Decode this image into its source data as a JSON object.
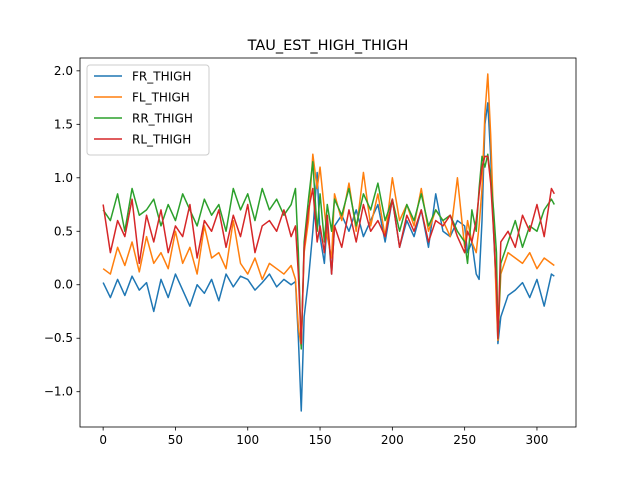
{
  "chart_data": {
    "type": "line",
    "title": "TAU_EST_HIGH_THIGH",
    "xlabel": "",
    "ylabel": "",
    "xlim": [
      -16,
      327
    ],
    "ylim": [
      -1.33,
      2.12
    ],
    "xticks": [
      0,
      50,
      100,
      150,
      200,
      250,
      300
    ],
    "yticks": [
      -1.0,
      -0.5,
      0.0,
      0.5,
      1.0,
      1.5,
      2.0
    ],
    "ytick_labels": [
      "−1.0",
      "−0.5",
      "0.0",
      "0.5",
      "1.0",
      "1.5",
      "2.0"
    ],
    "grid": false,
    "legend_position": "top-left",
    "series": [
      {
        "name": "FR_THIGH",
        "color": "#1f77b4",
        "x": [
          0,
          5,
          10,
          15,
          20,
          25,
          30,
          35,
          40,
          45,
          50,
          55,
          60,
          65,
          70,
          75,
          80,
          85,
          90,
          95,
          100,
          105,
          110,
          115,
          120,
          125,
          130,
          133,
          135,
          137,
          139,
          142,
          145,
          148,
          150,
          153,
          155,
          158,
          160,
          165,
          170,
          175,
          180,
          185,
          190,
          195,
          200,
          205,
          210,
          215,
          220,
          225,
          230,
          235,
          240,
          245,
          250,
          252,
          255,
          258,
          260,
          262,
          264,
          266,
          268,
          270,
          272,
          273,
          275,
          280,
          285,
          290,
          295,
          300,
          305,
          310,
          312
        ],
        "y": [
          0.02,
          -0.12,
          0.05,
          -0.1,
          0.08,
          -0.05,
          0.02,
          -0.25,
          0.05,
          -0.12,
          0.1,
          -0.05,
          -0.2,
          0.0,
          -0.08,
          0.05,
          -0.15,
          0.1,
          -0.02,
          0.08,
          0.05,
          -0.05,
          0.02,
          0.1,
          -0.02,
          0.05,
          0.0,
          0.03,
          -0.5,
          -1.18,
          -0.3,
          0.05,
          0.5,
          1.05,
          0.45,
          0.2,
          0.6,
          0.1,
          0.55,
          0.65,
          0.5,
          0.7,
          0.45,
          0.6,
          0.75,
          0.4,
          0.8,
          0.35,
          0.6,
          0.45,
          0.7,
          0.35,
          0.85,
          0.5,
          0.45,
          0.6,
          0.55,
          0.3,
          0.4,
          0.1,
          0.05,
          0.6,
          1.5,
          1.7,
          1.2,
          0.5,
          -0.1,
          -0.55,
          -0.3,
          -0.1,
          -0.05,
          0.02,
          -0.12,
          0.05,
          -0.2,
          0.1,
          0.08
        ]
      },
      {
        "name": "FL_THIGH",
        "color": "#ff7f0e",
        "x": [
          0,
          5,
          10,
          15,
          20,
          25,
          30,
          35,
          40,
          45,
          50,
          55,
          60,
          65,
          70,
          75,
          80,
          85,
          90,
          95,
          100,
          105,
          110,
          115,
          120,
          125,
          130,
          133,
          135,
          137,
          139,
          142,
          145,
          148,
          150,
          153,
          155,
          158,
          160,
          165,
          170,
          175,
          180,
          185,
          190,
          195,
          200,
          205,
          210,
          215,
          220,
          225,
          230,
          235,
          240,
          245,
          250,
          252,
          255,
          258,
          260,
          262,
          264,
          266,
          268,
          270,
          272,
          273,
          275,
          280,
          285,
          290,
          295,
          300,
          305,
          310,
          312
        ],
        "y": [
          0.15,
          0.1,
          0.35,
          0.18,
          0.4,
          0.12,
          0.45,
          0.2,
          0.3,
          0.15,
          0.5,
          0.2,
          0.35,
          0.1,
          0.55,
          0.25,
          0.3,
          0.15,
          0.6,
          0.2,
          0.1,
          0.25,
          0.05,
          0.2,
          0.15,
          0.1,
          0.18,
          0.05,
          -0.4,
          -0.58,
          0.3,
          0.6,
          1.22,
          0.9,
          1.1,
          0.7,
          0.45,
          0.25,
          0.85,
          0.6,
          0.95,
          0.5,
          1.05,
          0.55,
          0.85,
          0.45,
          1.0,
          0.6,
          0.75,
          0.55,
          0.9,
          0.5,
          0.7,
          0.6,
          0.45,
          1.0,
          0.35,
          0.6,
          0.4,
          0.3,
          0.55,
          0.9,
          1.6,
          1.97,
          1.4,
          0.6,
          -0.2,
          -0.52,
          0.1,
          0.3,
          0.25,
          0.2,
          0.3,
          0.15,
          0.25,
          0.2,
          0.18
        ]
      },
      {
        "name": "RR_THIGH",
        "color": "#2ca02c",
        "x": [
          0,
          5,
          10,
          15,
          20,
          25,
          30,
          35,
          40,
          45,
          50,
          55,
          60,
          65,
          70,
          75,
          80,
          85,
          90,
          95,
          100,
          105,
          110,
          115,
          120,
          125,
          130,
          133,
          135,
          137,
          139,
          142,
          145,
          148,
          150,
          153,
          155,
          158,
          160,
          165,
          170,
          175,
          180,
          185,
          190,
          195,
          200,
          205,
          210,
          215,
          220,
          225,
          230,
          235,
          240,
          245,
          250,
          252,
          255,
          258,
          260,
          262,
          264,
          266,
          268,
          270,
          272,
          273,
          275,
          280,
          285,
          290,
          295,
          300,
          305,
          310,
          312
        ],
        "y": [
          0.7,
          0.6,
          0.85,
          0.5,
          0.9,
          0.65,
          0.7,
          0.8,
          0.55,
          0.75,
          0.6,
          0.85,
          0.7,
          0.55,
          0.8,
          0.65,
          0.75,
          0.5,
          0.9,
          0.7,
          0.85,
          0.6,
          0.9,
          0.7,
          0.8,
          0.65,
          0.75,
          0.9,
          0.3,
          -0.6,
          0.4,
          0.8,
          1.15,
          0.5,
          0.85,
          0.4,
          0.75,
          0.5,
          0.8,
          0.65,
          0.9,
          0.55,
          0.85,
          0.7,
          0.95,
          0.6,
          0.8,
          0.5,
          0.75,
          0.6,
          0.85,
          0.55,
          0.7,
          0.6,
          0.65,
          0.5,
          0.4,
          0.2,
          0.7,
          0.5,
          0.9,
          1.2,
          1.1,
          1.22,
          1.0,
          0.7,
          0.3,
          -0.5,
          0.2,
          0.4,
          0.6,
          0.35,
          0.55,
          0.5,
          0.7,
          0.8,
          0.75
        ]
      },
      {
        "name": "RL_THIGH",
        "color": "#d62728",
        "x": [
          0,
          5,
          10,
          15,
          20,
          25,
          30,
          35,
          40,
          45,
          50,
          55,
          60,
          65,
          70,
          75,
          80,
          85,
          90,
          95,
          100,
          105,
          110,
          115,
          120,
          125,
          130,
          133,
          135,
          137,
          139,
          142,
          145,
          148,
          150,
          153,
          155,
          158,
          160,
          165,
          170,
          175,
          180,
          185,
          190,
          195,
          200,
          205,
          210,
          215,
          220,
          225,
          230,
          235,
          240,
          245,
          250,
          252,
          255,
          258,
          260,
          262,
          264,
          266,
          268,
          270,
          272,
          273,
          275,
          280,
          285,
          290,
          295,
          300,
          305,
          310,
          312
        ],
        "y": [
          0.75,
          0.3,
          0.6,
          0.45,
          0.8,
          0.2,
          0.65,
          0.4,
          0.7,
          0.3,
          0.55,
          0.45,
          0.75,
          0.25,
          0.6,
          0.5,
          0.7,
          0.35,
          0.65,
          0.45,
          0.75,
          0.3,
          0.55,
          0.6,
          0.5,
          0.7,
          0.45,
          0.55,
          0.1,
          -0.55,
          0.35,
          0.7,
          0.9,
          0.4,
          0.55,
          0.3,
          0.65,
          0.1,
          0.55,
          0.35,
          0.7,
          0.4,
          0.75,
          0.5,
          0.6,
          0.45,
          0.8,
          0.35,
          0.65,
          0.5,
          0.7,
          0.4,
          0.6,
          0.55,
          0.65,
          0.45,
          0.3,
          0.5,
          0.4,
          0.6,
          0.85,
          1.1,
          1.2,
          1.2,
          0.95,
          0.5,
          0.0,
          -0.5,
          0.4,
          0.5,
          0.35,
          0.65,
          0.5,
          0.75,
          0.45,
          0.9,
          0.85
        ]
      }
    ]
  }
}
